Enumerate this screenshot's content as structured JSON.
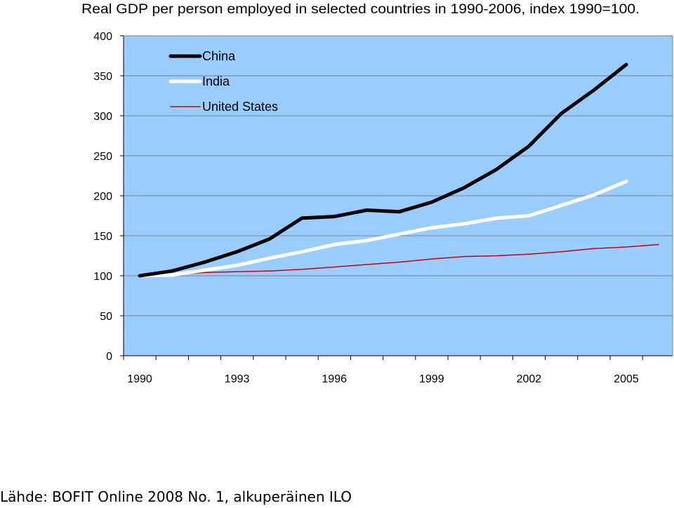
{
  "chart_data": {
    "type": "line",
    "title": "Real GDP per person employed in selected countries in 1990-2006, index 1990=100.",
    "xlabel": "",
    "ylabel": "",
    "x": [
      1990,
      1991,
      1992,
      1993,
      1994,
      1995,
      1996,
      1997,
      1998,
      1999,
      2000,
      2001,
      2002,
      2003,
      2004,
      2005,
      2006
    ],
    "x_tick_labels": [
      "1990",
      "1993",
      "1996",
      "1999",
      "2002",
      "2005"
    ],
    "y_tick_labels": [
      "0",
      "50",
      "100",
      "150",
      "200",
      "250",
      "300",
      "350",
      "400"
    ],
    "ylim": [
      0,
      400
    ],
    "grid": "horizontal",
    "legend_position": "top-left",
    "background_color": "#99CCFF",
    "series": [
      {
        "name": "China",
        "color": "#000000",
        "x": [
          1990,
          1991,
          1992,
          1993,
          1994,
          1995,
          1996,
          1997,
          1998,
          1999,
          2000,
          2001,
          2002,
          2003,
          2004,
          2005
        ],
        "values": [
          100,
          106,
          117,
          130,
          146,
          172,
          174,
          182,
          180,
          192,
          210,
          233,
          262,
          303,
          332,
          364
        ]
      },
      {
        "name": "India",
        "color": "#FFFFFF",
        "x": [
          1990,
          1991,
          1992,
          1993,
          1994,
          1995,
          1996,
          1997,
          1998,
          1999,
          2000,
          2001,
          2002,
          2003,
          2004,
          2005
        ],
        "values": [
          100,
          101,
          107,
          113,
          122,
          130,
          139,
          144,
          152,
          160,
          165,
          172,
          175,
          188,
          201,
          218
        ]
      },
      {
        "name": "United States",
        "color": "#CC0000",
        "x": [
          1990,
          1991,
          1992,
          1993,
          1994,
          1995,
          1996,
          1997,
          1998,
          1999,
          2000,
          2001,
          2002,
          2003,
          2004,
          2005,
          2006
        ],
        "values": [
          100,
          101,
          104,
          105,
          106,
          108,
          111,
          114,
          117,
          121,
          124,
          125,
          127,
          130,
          134,
          136,
          139
        ]
      }
    ]
  },
  "source": {
    "text": "Lähde: BOFIT Online 2008 No. 1, alkuperäinen ILO"
  }
}
